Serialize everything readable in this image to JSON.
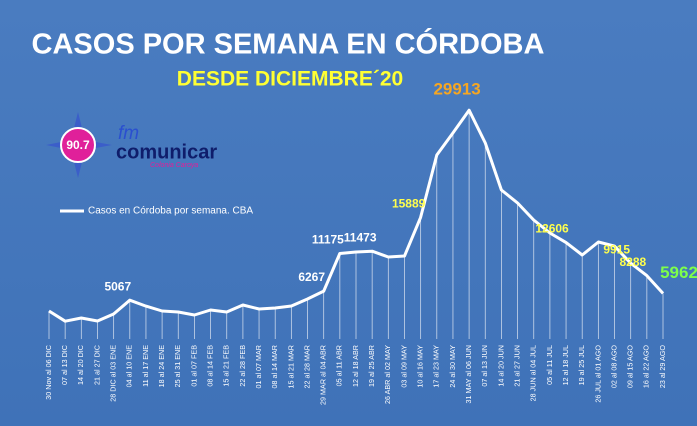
{
  "chart_data": {
    "type": "line",
    "title": "CASOS POR SEMANA EN CÓRDOBA",
    "subtitle": "DESDE DICIEMBRE´20",
    "categories": [
      "30 Nov al 06 DIC",
      "07 al 13 DIC",
      "14 al 20 DIC",
      "21 al 27 DIC",
      "28 DIC al 03 ENE",
      "04 al 10 ENE",
      "11 al 17 ENE",
      "18 al 24 ENE",
      "25 al 31 ENE",
      "01 al 07 FEB",
      "08 al 14 FEB",
      "15 al 21 FEB",
      "22 al 28 FEB",
      "01 al 07 MAR",
      "08 al 14 MAR",
      "15 al 21 MAR",
      "22 al 28 MAR",
      "29 MAR al 04 ABR",
      "05 al 11 ABR",
      "12 al 18 ABR",
      "19 al 25 ABR",
      "26 ABR al 02 MAY",
      "03 al 09 MAY",
      "10 al 16 MAY",
      "17 al 23 MAY",
      "24 al 30 MAY",
      "31 MAY al 06 JUN",
      "07 al 13 JUN",
      "14 al 20 JUN",
      "21 al 27 JUN",
      "28 JUN al 04 JUL",
      "05 al 11 JUL",
      "12 al 18 JUL",
      "19 al 25 JUL",
      "26 JUL al 01 AGO",
      "02 al 08 AGO",
      "09 al 15 AGO",
      "16 al 22 AGO",
      "23 al 29 AGO"
    ],
    "series": [
      {
        "name": "Casos en Córdoba por semana. CBA",
        "color": "#ffffff",
        "values": [
          3660,
          2330,
          2750,
          2350,
          3270,
          5067,
          4300,
          3660,
          3530,
          3140,
          3790,
          3530,
          4440,
          3920,
          4050,
          4310,
          5230,
          6267,
          11175,
          11370,
          11473,
          10720,
          10850,
          15889,
          24050,
          26930,
          29913,
          25620,
          19480,
          17780,
          15560,
          13860,
          12606,
          10980,
          12680,
          12150,
          9915,
          8288,
          5962
        ]
      }
    ],
    "data_labels": [
      {
        "index": 5,
        "color": "#ffffff"
      },
      {
        "index": 17,
        "color": "#ffffff"
      },
      {
        "index": 18,
        "color": "#ffffff"
      },
      {
        "index": 20,
        "color": "#ffffff"
      },
      {
        "index": 23,
        "color": "#ffff4d"
      },
      {
        "index": 26,
        "color": "#f5a623"
      },
      {
        "index": 32,
        "color": "#ffff4d"
      },
      {
        "index": 36,
        "color": "#ffff4d"
      },
      {
        "index": 37,
        "color": "#ffff4d"
      },
      {
        "index": 38,
        "color": "#7dff4a"
      }
    ],
    "ylim": [
      0,
      30000
    ],
    "drop_lines": true
  },
  "logo": {
    "frequency": "90.7",
    "brand_prefix": "fm",
    "brand": "comunicar",
    "place": "Colonia Caroya"
  }
}
